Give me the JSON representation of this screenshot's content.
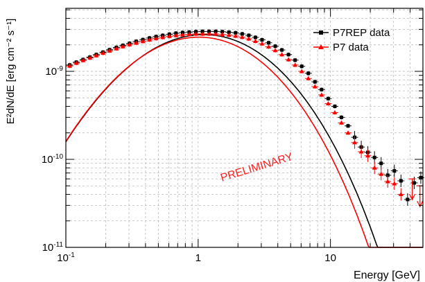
{
  "chart_data": {
    "type": "scatter",
    "xlabel": "Energy [GeV]",
    "ylabel": "E²dN/dE [erg cm⁻² s⁻¹]",
    "x_scale": "log",
    "y_scale": "log",
    "xlim": [
      0.1,
      50
    ],
    "ylim": [
      1e-11,
      5.2e-09
    ],
    "grid": true,
    "legend_position": "top-right",
    "annotation": "PRELIMINARY",
    "x_ticks": [
      {
        "value": 0.1,
        "base": "10",
        "exp": "-1"
      },
      {
        "value": 1,
        "base": "1",
        "exp": ""
      },
      {
        "value": 10,
        "base": "10",
        "exp": ""
      }
    ],
    "y_ticks": [
      {
        "value": 1e-11,
        "base": "10",
        "exp": "-11"
      },
      {
        "value": 1e-10,
        "base": "10",
        "exp": "-10"
      },
      {
        "value": 1e-09,
        "base": "10",
        "exp": "-9"
      }
    ],
    "series": [
      {
        "name": "P7REP data",
        "color": "#000000",
        "marker": "square",
        "points": [
          {
            "x": 0.107,
            "y": 1.18e-09
          },
          {
            "x": 0.12,
            "y": 1.27e-09
          },
          {
            "x": 0.135,
            "y": 1.36e-09
          },
          {
            "x": 0.152,
            "y": 1.45e-09
          },
          {
            "x": 0.17,
            "y": 1.55e-09
          },
          {
            "x": 0.191,
            "y": 1.65e-09
          },
          {
            "x": 0.214,
            "y": 1.76e-09
          },
          {
            "x": 0.241,
            "y": 1.87e-09
          },
          {
            "x": 0.27,
            "y": 1.97e-09
          },
          {
            "x": 0.303,
            "y": 2.08e-09
          },
          {
            "x": 0.34,
            "y": 2.19e-09
          },
          {
            "x": 0.382,
            "y": 2.29e-09
          },
          {
            "x": 0.429,
            "y": 2.39e-09
          },
          {
            "x": 0.481,
            "y": 2.48e-09
          },
          {
            "x": 0.54,
            "y": 2.56e-09
          },
          {
            "x": 0.606,
            "y": 2.64e-09
          },
          {
            "x": 0.68,
            "y": 2.71e-09
          },
          {
            "x": 0.763,
            "y": 2.76e-09
          },
          {
            "x": 0.856,
            "y": 2.79e-09
          },
          {
            "x": 0.961,
            "y": 2.82e-09
          },
          {
            "x": 1.078,
            "y": 2.84e-09
          },
          {
            "x": 1.21,
            "y": 2.84e-09
          },
          {
            "x": 1.357,
            "y": 2.84e-09
          },
          {
            "x": 1.523,
            "y": 2.82e-09
          },
          {
            "x": 1.709,
            "y": 2.78e-09
          },
          {
            "x": 1.918,
            "y": 2.74e-09
          },
          {
            "x": 2.152,
            "y": 2.66e-09
          },
          {
            "x": 2.415,
            "y": 2.56e-09
          },
          {
            "x": 2.709,
            "y": 2.43e-09
          },
          {
            "x": 3.04,
            "y": 2.28e-09
          },
          {
            "x": 3.411,
            "y": 2.11e-09
          },
          {
            "x": 3.827,
            "y": 1.93e-09
          },
          {
            "x": 4.294,
            "y": 1.75e-09
          },
          {
            "x": 4.818,
            "y": 1.55e-09
          },
          {
            "x": 5.406,
            "y": 1.34e-09
          },
          {
            "x": 6.066,
            "y": 1.14e-09
          },
          {
            "x": 6.807,
            "y": 9.5e-10
          },
          {
            "x": 7.637,
            "y": 7.6e-10
          },
          {
            "x": 8.569,
            "y": 6.2e-10
          },
          {
            "x": 9.615,
            "y": 4.9e-10
          },
          {
            "x": 10.79,
            "y": 4e-10
          },
          {
            "x": 12.1,
            "y": 3e-10
          },
          {
            "x": 13.58,
            "y": 2.4e-10
          },
          {
            "x": 15.24,
            "y": 1.78e-10
          },
          {
            "x": 17.1,
            "y": 1.38e-10
          },
          {
            "x": 19.18,
            "y": 1.2e-10
          },
          {
            "x": 21.53,
            "y": 1.05e-10
          },
          {
            "x": 24.16,
            "y": 9e-11
          },
          {
            "x": 27.11,
            "y": 6.6e-11
          },
          {
            "x": 30.41,
            "y": 7.4e-11
          },
          {
            "x": 34.12,
            "y": 5.7e-11
          },
          {
            "x": 38.29,
            "y": 3.5e-11
          },
          {
            "x": 42.96,
            "y": 5.4e-11
          },
          {
            "x": 48.2,
            "y": 6.2e-11
          }
        ]
      },
      {
        "name": "P7 data",
        "color": "#ff0000",
        "marker": "triangle",
        "points": [
          {
            "x": 0.107,
            "y": 1.15e-09
          },
          {
            "x": 0.12,
            "y": 1.24e-09
          },
          {
            "x": 0.135,
            "y": 1.33e-09
          },
          {
            "x": 0.152,
            "y": 1.42e-09
          },
          {
            "x": 0.17,
            "y": 1.51e-09
          },
          {
            "x": 0.191,
            "y": 1.61e-09
          },
          {
            "x": 0.214,
            "y": 1.71e-09
          },
          {
            "x": 0.241,
            "y": 1.81e-09
          },
          {
            "x": 0.27,
            "y": 1.91e-09
          },
          {
            "x": 0.303,
            "y": 2.01e-09
          },
          {
            "x": 0.34,
            "y": 2.1e-09
          },
          {
            "x": 0.382,
            "y": 2.19e-09
          },
          {
            "x": 0.429,
            "y": 2.28e-09
          },
          {
            "x": 0.481,
            "y": 2.36e-09
          },
          {
            "x": 0.54,
            "y": 2.43e-09
          },
          {
            "x": 0.606,
            "y": 2.5e-09
          },
          {
            "x": 0.68,
            "y": 2.55e-09
          },
          {
            "x": 0.763,
            "y": 2.6e-09
          },
          {
            "x": 0.856,
            "y": 2.63e-09
          },
          {
            "x": 0.961,
            "y": 2.66e-09
          },
          {
            "x": 1.078,
            "y": 2.66e-09
          },
          {
            "x": 1.21,
            "y": 2.66e-09
          },
          {
            "x": 1.357,
            "y": 2.65e-09
          },
          {
            "x": 1.523,
            "y": 2.62e-09
          },
          {
            "x": 1.709,
            "y": 2.58e-09
          },
          {
            "x": 1.918,
            "y": 2.52e-09
          },
          {
            "x": 2.152,
            "y": 2.44e-09
          },
          {
            "x": 2.415,
            "y": 2.34e-09
          },
          {
            "x": 2.709,
            "y": 2.2e-09
          },
          {
            "x": 3.04,
            "y": 2.06e-09
          },
          {
            "x": 3.411,
            "y": 1.9e-09
          },
          {
            "x": 3.827,
            "y": 1.73e-09
          },
          {
            "x": 4.294,
            "y": 1.55e-09
          },
          {
            "x": 4.818,
            "y": 1.36e-09
          },
          {
            "x": 5.406,
            "y": 1.18e-09
          },
          {
            "x": 6.066,
            "y": 1e-09
          },
          {
            "x": 6.807,
            "y": 8.3e-10
          },
          {
            "x": 7.637,
            "y": 6.7e-10
          },
          {
            "x": 8.569,
            "y": 5.4e-10
          },
          {
            "x": 9.615,
            "y": 4.3e-10
          },
          {
            "x": 10.79,
            "y": 3.4e-10
          },
          {
            "x": 12.1,
            "y": 2.6e-10
          },
          {
            "x": 13.58,
            "y": 2e-10
          },
          {
            "x": 15.24,
            "y": 1.55e-10
          },
          {
            "x": 17.1,
            "y": 1.22e-10
          },
          {
            "x": 19.18,
            "y": 1.1e-10
          },
          {
            "x": 21.53,
            "y": 8e-11
          },
          {
            "x": 24.16,
            "y": 6.8e-11
          },
          {
            "x": 27.11,
            "y": 5.6e-11
          },
          {
            "x": 30.41,
            "y": 5.3e-11
          },
          {
            "x": 34.12,
            "y": 4e-11
          }
        ],
        "upper_limits": [
          {
            "x": 41.5,
            "y": 6e-11
          },
          {
            "x": 47.5,
            "y": 5e-11
          }
        ]
      }
    ],
    "model_curves": [
      {
        "color": "#000000",
        "norm": 2.84e-09,
        "peak": 1.2,
        "width": 0.92,
        "cutoff": 14.0
      },
      {
        "color": "#ff0000",
        "norm": 2.66e-09,
        "peak": 1.1,
        "width": 0.9,
        "cutoff": 12.5
      }
    ]
  }
}
